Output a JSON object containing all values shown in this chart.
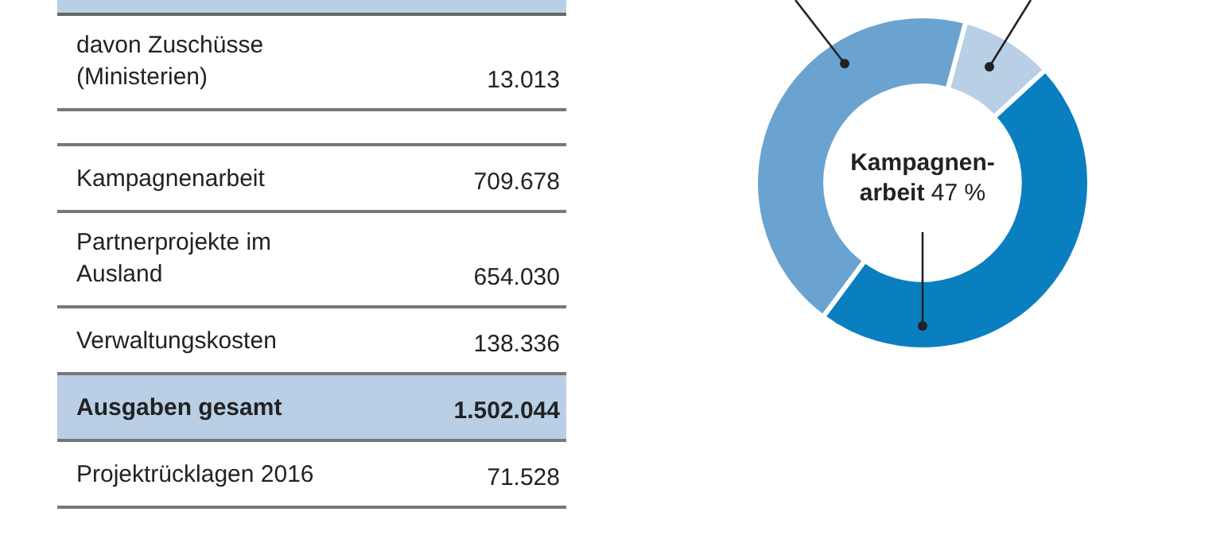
{
  "chart_data": [
    {
      "type": "other",
      "categories": [
        "davon Zuschüsse (Ministerien)",
        null,
        "Kampagnenarbeit",
        "Partnerprojekte im Ausland",
        "Verwaltungskosten",
        "Ausgaben gesamt",
        "Projektrücklagen 2016"
      ],
      "values": [
        13013,
        null,
        709678,
        654030,
        138336,
        1502044,
        71528
      ],
      "value_labels": [
        "13.013",
        null,
        "709.678",
        "654.030",
        "138.336",
        "1.502.044",
        "71.528"
      ],
      "colors": [
        null,
        null,
        null,
        null,
        null,
        "#b8cfe6",
        null
      ]
    },
    {
      "type": "donut",
      "categories": [
        null,
        "Kampagnen-arbeit",
        null
      ],
      "values": [
        9,
        47,
        44
      ],
      "colors": [
        "#b8cfe6",
        "#0a7fbf",
        "#6aa3d0"
      ],
      "value_labels": [
        null,
        "47 %",
        null
      ]
    }
  ]
}
